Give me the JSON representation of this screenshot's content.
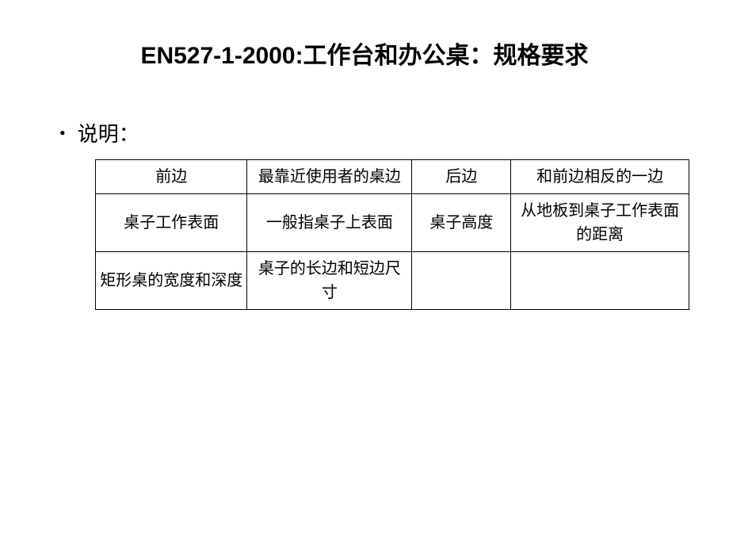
{
  "title": "EN527-1-2000:工作台和办公桌：规格要求",
  "bullet_label": "说明：",
  "table": {
    "columns_widths": [
      "23%",
      "25%",
      "15%",
      "27%"
    ],
    "border_color": "#000000",
    "background_color": "#ffffff",
    "text_color": "#000000",
    "font_size": 20,
    "rows": [
      {
        "c1": "前边",
        "c2": "最靠近使用者的桌边",
        "c3": "后边",
        "c4": "和前边相反的一边"
      },
      {
        "c1": "桌子工作表面",
        "c2": "一般指桌子上表面",
        "c3": "桌子高度",
        "c4": "从地板到桌子工作表面的距离"
      },
      {
        "c1": "矩形桌的宽度和深度",
        "c2": "桌子的长边和短边尺寸",
        "c3": "",
        "c4": ""
      }
    ]
  }
}
